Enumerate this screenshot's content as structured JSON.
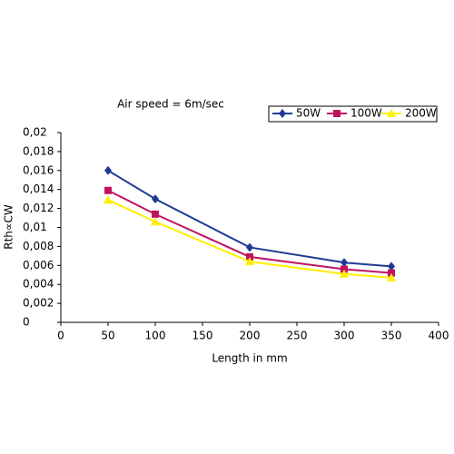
{
  "chart_data": {
    "type": "line",
    "title": "Air speed = 6m/sec",
    "x_label": "Length in mm",
    "y_label": "Rth∝CW",
    "x": [
      50,
      100,
      200,
      300,
      350
    ],
    "series": [
      {
        "name": "50W",
        "color": "#1f3a93",
        "marker": "diamond",
        "values": [
          0.016,
          0.013,
          0.0079,
          0.0063,
          0.0059
        ]
      },
      {
        "name": "100W",
        "color": "#c0135f",
        "marker": "square",
        "values": [
          0.0139,
          0.0114,
          0.0069,
          0.0056,
          0.0052
        ]
      },
      {
        "name": "200W",
        "color": "#ffee00",
        "marker": "triangle",
        "values": [
          0.0129,
          0.0106,
          0.0064,
          0.0051,
          0.0047
        ]
      }
    ],
    "xlim": [
      0,
      400
    ],
    "xticks": [
      0,
      50,
      100,
      150,
      200,
      250,
      300,
      350,
      400
    ],
    "ylim": [
      0,
      0.02
    ],
    "yticks": [
      0,
      {
        "value": 0.002,
        "label": "0,002"
      },
      {
        "value": 0.004,
        "label": "0,004"
      },
      {
        "value": 0.006,
        "label": "0,006"
      },
      {
        "value": 0.008,
        "label": "0,008"
      },
      {
        "value": 0.01,
        "label": "0,01"
      },
      {
        "value": 0.012,
        "label": "0,012"
      },
      {
        "value": 0.014,
        "label": "0,014"
      },
      {
        "value": 0.016,
        "label": "0,016"
      },
      {
        "value": 0.018,
        "label": "0,018"
      },
      {
        "value": 0.02,
        "label": "0,02"
      }
    ],
    "grid": false,
    "legend": "upper right"
  }
}
